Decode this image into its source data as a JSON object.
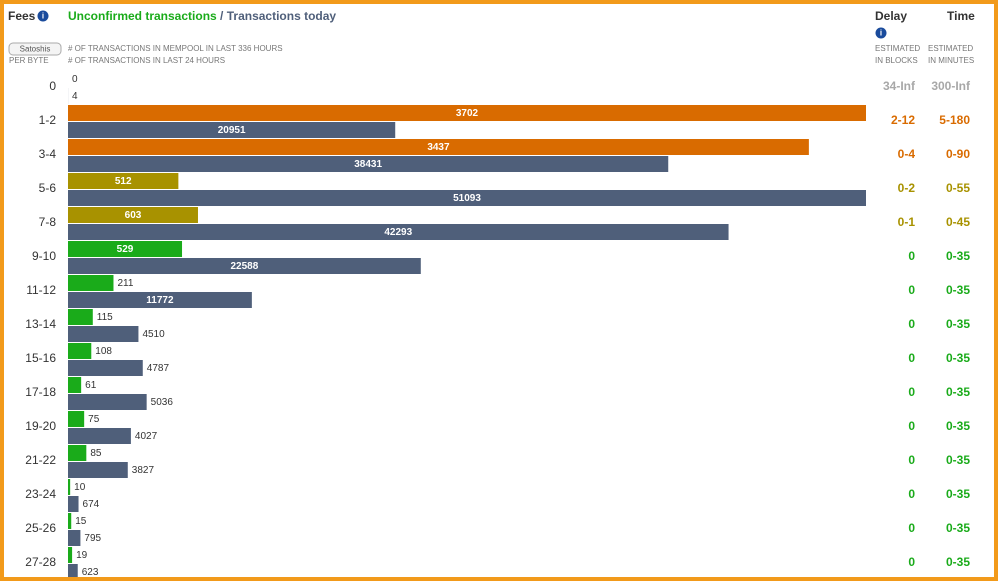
{
  "header": {
    "fees": "Fees",
    "unconfirmed": "Unconfirmed transactions",
    "separator": "/",
    "today": "Transactions today",
    "unit_select": "Satoshis",
    "per_byte": "PER BYTE",
    "caption_mempool": "# OF TRANSACTIONS IN MEMPOOL IN LAST 336 HOURS",
    "caption_today": "# OF TRANSACTIONS IN LAST 24 HOURS",
    "delay": "Delay",
    "time": "Time",
    "delay_caption": [
      "ESTIMATED",
      "IN BLOCKS"
    ],
    "time_caption": [
      "ESTIMATED",
      "IN MINUTES"
    ]
  },
  "today_color": "#4f5f7a",
  "rows": [
    {
      "fees": "0",
      "unconfirmed": 0,
      "today": 4,
      "delay": "34-Inf",
      "time": "300-Inf",
      "color": "#a8a8a8"
    },
    {
      "fees": "1-2",
      "unconfirmed": 3702,
      "today": 20951,
      "delay": "2-12",
      "time": "5-180",
      "color": "#d96b00"
    },
    {
      "fees": "3-4",
      "unconfirmed": 3437,
      "today": 38431,
      "delay": "0-4",
      "time": "0-90",
      "color": "#d96b00"
    },
    {
      "fees": "5-6",
      "unconfirmed": 512,
      "today": 51093,
      "delay": "0-2",
      "time": "0-55",
      "color": "#a89200"
    },
    {
      "fees": "7-8",
      "unconfirmed": 603,
      "today": 42293,
      "delay": "0-1",
      "time": "0-45",
      "color": "#a89200"
    },
    {
      "fees": "9-10",
      "unconfirmed": 529,
      "today": 22588,
      "delay": "0",
      "time": "0-35",
      "color": "#1aab1a"
    },
    {
      "fees": "11-12",
      "unconfirmed": 211,
      "today": 11772,
      "delay": "0",
      "time": "0-35",
      "color": "#1aab1a"
    },
    {
      "fees": "13-14",
      "unconfirmed": 115,
      "today": 4510,
      "delay": "0",
      "time": "0-35",
      "color": "#1aab1a"
    },
    {
      "fees": "15-16",
      "unconfirmed": 108,
      "today": 4787,
      "delay": "0",
      "time": "0-35",
      "color": "#1aab1a"
    },
    {
      "fees": "17-18",
      "unconfirmed": 61,
      "today": 5036,
      "delay": "0",
      "time": "0-35",
      "color": "#1aab1a"
    },
    {
      "fees": "19-20",
      "unconfirmed": 75,
      "today": 4027,
      "delay": "0",
      "time": "0-35",
      "color": "#1aab1a"
    },
    {
      "fees": "21-22",
      "unconfirmed": 85,
      "today": 3827,
      "delay": "0",
      "time": "0-35",
      "color": "#1aab1a"
    },
    {
      "fees": "23-24",
      "unconfirmed": 10,
      "today": 674,
      "delay": "0",
      "time": "0-35",
      "color": "#1aab1a"
    },
    {
      "fees": "25-26",
      "unconfirmed": 15,
      "today": 795,
      "delay": "0",
      "time": "0-35",
      "color": "#1aab1a"
    },
    {
      "fees": "27-28",
      "unconfirmed": 19,
      "today": 623,
      "delay": "0",
      "time": "0-35",
      "color": "#1aab1a"
    }
  ]
}
